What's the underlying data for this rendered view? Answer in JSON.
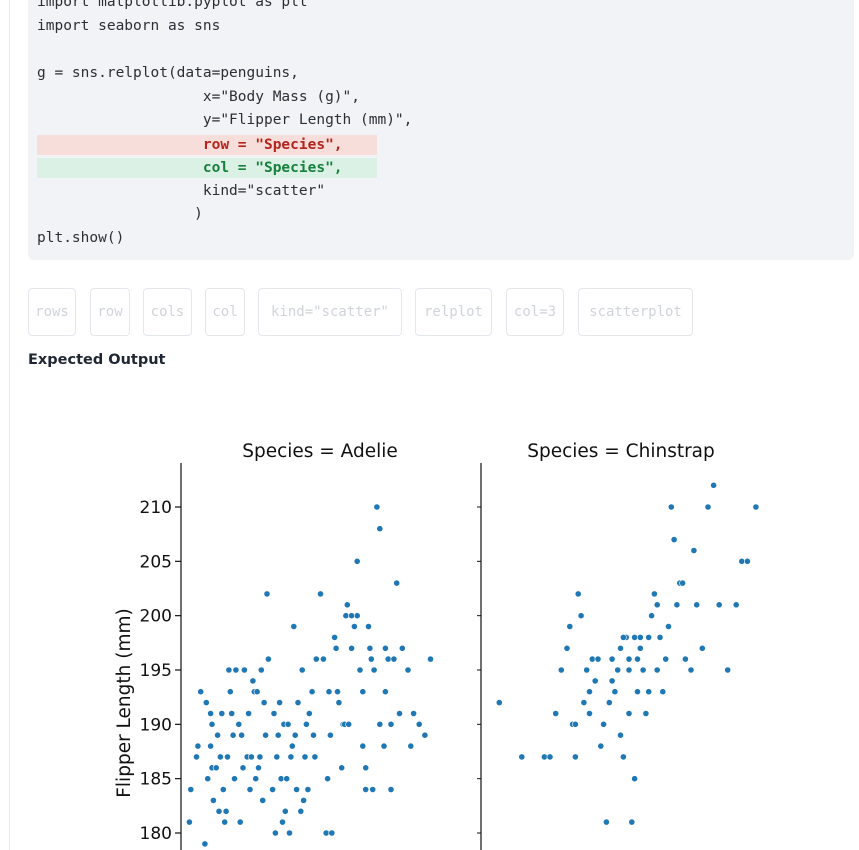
{
  "code": {
    "lines": [
      "import matplotlib.pyplot as plt",
      "import seaborn as sns",
      "",
      "g = sns.relplot(data=penguins,",
      "                   x=\"Body Mass (g)\",",
      "                   y=\"Flipper Length (mm)\",",
      "                   row = \"Species\",",
      "                   col = \"Species\",",
      "                   kind=\"scatter\"",
      "                  )",
      "plt.show()"
    ],
    "removed_line_index": 6,
    "added_line_index": 7
  },
  "options": [
    "rows",
    "row",
    "cols",
    "col",
    "kind=\"scatter\"",
    "relplot",
    "col=3",
    "scatterplot"
  ],
  "section_title": "Expected Output",
  "colors": {
    "marker": "#1f77b4",
    "removed_bg": "#f7dedb",
    "added_bg": "#dcf1e6"
  },
  "chart_data": {
    "type": "scatter",
    "ylabel": "Flipper Length (mm)",
    "y_ticks": [
      "180",
      "185",
      "190",
      "195",
      "200",
      "205",
      "210"
    ],
    "ylim": [
      178.5,
      213.5
    ],
    "panels": [
      {
        "title": "Species = Adelie",
        "points": [
          [
            0.005,
            181
          ],
          [
            0.01,
            184
          ],
          [
            0.03,
            187
          ],
          [
            0.035,
            188
          ],
          [
            0.045,
            193
          ],
          [
            0.06,
            179
          ],
          [
            0.065,
            192
          ],
          [
            0.07,
            185
          ],
          [
            0.08,
            191
          ],
          [
            0.085,
            190
          ],
          [
            0.08,
            188
          ],
          [
            0.085,
            186
          ],
          [
            0.09,
            183
          ],
          [
            0.1,
            186
          ],
          [
            0.105,
            189
          ],
          [
            0.11,
            182
          ],
          [
            0.115,
            187
          ],
          [
            0.12,
            191
          ],
          [
            0.125,
            184
          ],
          [
            0.13,
            181
          ],
          [
            0.135,
            182
          ],
          [
            0.14,
            187
          ],
          [
            0.145,
            195
          ],
          [
            0.15,
            193
          ],
          [
            0.155,
            191
          ],
          [
            0.16,
            189
          ],
          [
            0.165,
            185
          ],
          [
            0.17,
            195
          ],
          [
            0.18,
            190
          ],
          [
            0.185,
            181
          ],
          [
            0.19,
            189
          ],
          [
            0.195,
            186
          ],
          [
            0.2,
            195
          ],
          [
            0.21,
            187
          ],
          [
            0.215,
            191
          ],
          [
            0.22,
            184
          ],
          [
            0.225,
            187
          ],
          [
            0.23,
            194
          ],
          [
            0.235,
            193
          ],
          [
            0.24,
            185
          ],
          [
            0.245,
            193
          ],
          [
            0.25,
            186
          ],
          [
            0.255,
            187
          ],
          [
            0.26,
            195
          ],
          [
            0.265,
            183
          ],
          [
            0.27,
            192
          ],
          [
            0.275,
            189
          ],
          [
            0.28,
            202
          ],
          [
            0.285,
            196
          ],
          [
            0.3,
            184
          ],
          [
            0.305,
            191
          ],
          [
            0.31,
            180
          ],
          [
            0.315,
            187
          ],
          [
            0.32,
            189
          ],
          [
            0.325,
            192
          ],
          [
            0.33,
            185
          ],
          [
            0.335,
            181
          ],
          [
            0.34,
            190
          ],
          [
            0.345,
            182
          ],
          [
            0.35,
            185
          ],
          [
            0.355,
            190
          ],
          [
            0.36,
            180
          ],
          [
            0.365,
            187
          ],
          [
            0.37,
            188
          ],
          [
            0.375,
            199
          ],
          [
            0.38,
            189
          ],
          [
            0.385,
            184
          ],
          [
            0.39,
            192
          ],
          [
            0.4,
            182
          ],
          [
            0.405,
            195
          ],
          [
            0.41,
            183
          ],
          [
            0.415,
            187
          ],
          [
            0.42,
            190
          ],
          [
            0.425,
            184
          ],
          [
            0.43,
            191
          ],
          [
            0.44,
            193
          ],
          [
            0.445,
            189
          ],
          [
            0.45,
            187
          ],
          [
            0.455,
            196
          ],
          [
            0.47,
            202
          ],
          [
            0.48,
            196
          ],
          [
            0.49,
            180
          ],
          [
            0.495,
            185
          ],
          [
            0.5,
            193
          ],
          [
            0.505,
            189
          ],
          [
            0.51,
            180
          ],
          [
            0.52,
            198
          ],
          [
            0.525,
            197
          ],
          [
            0.53,
            193
          ],
          [
            0.535,
            192
          ],
          [
            0.545,
            186
          ],
          [
            0.55,
            190
          ],
          [
            0.555,
            190
          ],
          [
            0.56,
            200
          ],
          [
            0.565,
            201
          ],
          [
            0.57,
            190
          ],
          [
            0.58,
            197
          ],
          [
            0.59,
            199
          ],
          [
            0.6,
            205
          ],
          [
            0.61,
            195
          ],
          [
            0.62,
            188
          ],
          [
            0.63,
            186
          ],
          [
            0.64,
            199
          ],
          [
            0.65,
            196
          ],
          [
            0.66,
            195
          ],
          [
            0.67,
            210
          ],
          [
            0.68,
            208
          ],
          [
            0.695,
            188
          ],
          [
            0.7,
            193
          ],
          [
            0.72,
            184
          ],
          [
            0.74,
            203
          ],
          [
            0.76,
            197
          ],
          [
            0.78,
            195
          ],
          [
            0.8,
            191
          ],
          [
            0.82,
            190
          ],
          [
            0.84,
            189
          ],
          [
            0.86,
            196
          ],
          [
            0.6,
            200
          ],
          [
            0.58,
            200
          ],
          [
            0.63,
            184
          ],
          [
            0.62,
            193
          ],
          [
            0.645,
            197
          ],
          [
            0.655,
            184
          ],
          [
            0.7,
            197
          ],
          [
            0.71,
            196
          ],
          [
            0.79,
            188
          ],
          [
            0.68,
            190
          ],
          [
            0.72,
            190
          ],
          [
            0.73,
            196
          ],
          [
            0.75,
            191
          ]
        ]
      },
      {
        "title": "Species = Chinstrap",
        "points": [
          [
            0.04,
            192
          ],
          [
            0.12,
            187
          ],
          [
            0.2,
            187
          ],
          [
            0.22,
            187
          ],
          [
            0.24,
            191
          ],
          [
            0.26,
            195
          ],
          [
            0.28,
            197
          ],
          [
            0.29,
            199
          ],
          [
            0.3,
            190
          ],
          [
            0.31,
            187
          ],
          [
            0.32,
            202
          ],
          [
            0.33,
            200
          ],
          [
            0.34,
            192
          ],
          [
            0.35,
            195
          ],
          [
            0.36,
            193
          ],
          [
            0.37,
            196
          ],
          [
            0.38,
            194
          ],
          [
            0.39,
            196
          ],
          [
            0.4,
            188
          ],
          [
            0.41,
            190
          ],
          [
            0.42,
            181
          ],
          [
            0.43,
            192
          ],
          [
            0.44,
            196
          ],
          [
            0.45,
            193
          ],
          [
            0.46,
            195
          ],
          [
            0.47,
            189
          ],
          [
            0.48,
            187
          ],
          [
            0.49,
            198
          ],
          [
            0.5,
            195
          ],
          [
            0.51,
            181
          ],
          [
            0.52,
            185
          ],
          [
            0.53,
            196
          ],
          [
            0.54,
            197
          ],
          [
            0.55,
            195
          ],
          [
            0.56,
            191
          ],
          [
            0.57,
            193
          ],
          [
            0.58,
            200
          ],
          [
            0.59,
            202
          ],
          [
            0.6,
            195
          ],
          [
            0.61,
            198
          ],
          [
            0.62,
            193
          ],
          [
            0.63,
            196
          ],
          [
            0.64,
            199
          ],
          [
            0.65,
            210
          ],
          [
            0.66,
            207
          ],
          [
            0.67,
            201
          ],
          [
            0.68,
            203
          ],
          [
            0.69,
            203
          ],
          [
            0.7,
            196
          ],
          [
            0.72,
            195
          ],
          [
            0.73,
            206
          ],
          [
            0.74,
            201
          ],
          [
            0.76,
            197
          ],
          [
            0.78,
            210
          ],
          [
            0.8,
            212
          ],
          [
            0.82,
            201
          ],
          [
            0.85,
            195
          ],
          [
            0.88,
            201
          ],
          [
            0.9,
            205
          ],
          [
            0.92,
            205
          ],
          [
            0.95,
            210
          ],
          [
            0.5,
            196
          ],
          [
            0.52,
            198
          ],
          [
            0.36,
            191
          ],
          [
            0.31,
            190
          ],
          [
            0.48,
            198
          ],
          [
            0.53,
            193
          ],
          [
            0.57,
            198
          ],
          [
            0.6,
            201
          ],
          [
            0.44,
            194
          ],
          [
            0.47,
            197
          ],
          [
            0.5,
            191
          ],
          [
            0.54,
            198
          ]
        ]
      }
    ]
  }
}
